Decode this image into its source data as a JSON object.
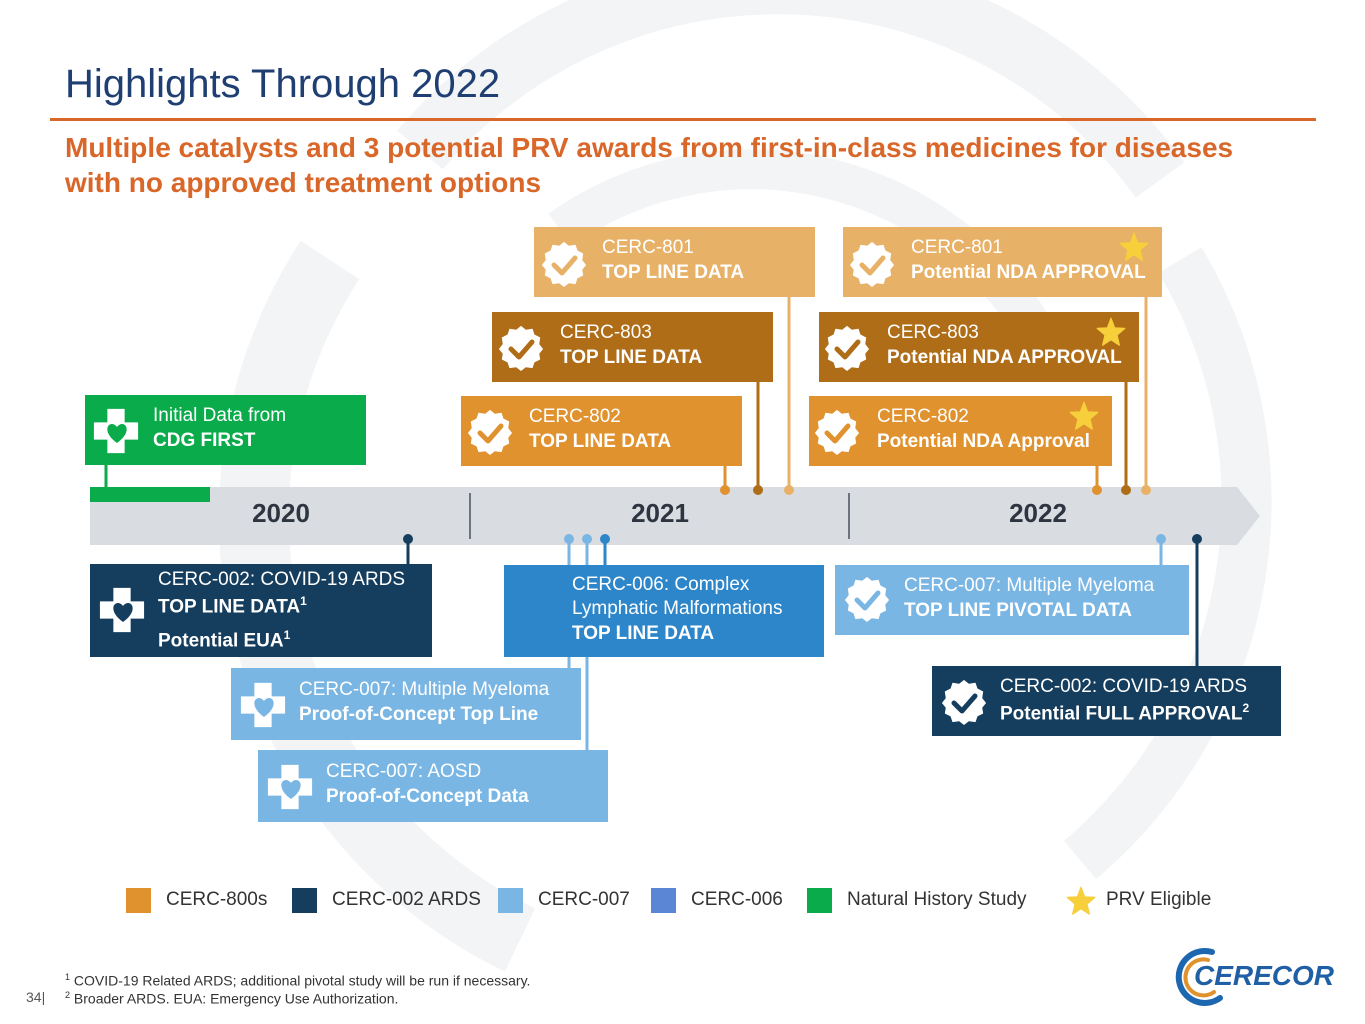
{
  "title": "Highlights Through 2022",
  "subtitle": "Multiple catalysts and 3 potential PRV awards from first-in-class medicines for diseases with no approved treatment options",
  "years": [
    "2020",
    "2021",
    "2022"
  ],
  "events": {
    "cerc801_top": {
      "line1": "CERC-801",
      "line2": "TOP LINE DATA"
    },
    "cerc801_nda": {
      "line1": "CERC-801",
      "line2": "Potential NDA APPROVAL"
    },
    "cerc803_top": {
      "line1": "CERC-803",
      "line2": "TOP LINE DATA"
    },
    "cerc803_nda": {
      "line1": "CERC-803",
      "line2": "Potential NDA APPROVAL"
    },
    "cerc802_top": {
      "line1": "CERC-802",
      "line2": "TOP LINE DATA"
    },
    "cerc802_nda": {
      "line1": "CERC-802",
      "line2": "Potential NDA Approval"
    },
    "cdg_first": {
      "line1": "Initial Data from",
      "line2": "CDG FIRST"
    },
    "cerc002_covid": {
      "line1": "CERC-002: COVID-19 ARDS",
      "line2": "TOP LINE DATA",
      "line2_sup": "1",
      "line3": "Potential EUA",
      "line3_sup": "1"
    },
    "cerc006": {
      "line1": "CERC-006: Complex",
      "line1b": "Lymphatic Malformations",
      "line2": "TOP LINE DATA"
    },
    "cerc007_mm_pivotal": {
      "line1": "CERC-007: Multiple Myeloma",
      "line2": "TOP LINE PIVOTAL DATA"
    },
    "cerc007_mm_poc": {
      "line1": "CERC-007: Multiple Myeloma",
      "line2": "Proof-of-Concept Top Line"
    },
    "cerc007_aosd": {
      "line1": "CERC-007: AOSD",
      "line2": "Proof-of-Concept Data"
    },
    "cerc002_full": {
      "line1": "CERC-002: COVID-19 ARDS",
      "line2": "Potential FULL APPROVAL",
      "line2_sup": "2"
    }
  },
  "legend": [
    {
      "label": "CERC-800s",
      "color": "#e0922f"
    },
    {
      "label": "CERC-002 ARDS",
      "color": "#143d5e"
    },
    {
      "label": "CERC-007",
      "color": "#7ab6e4"
    },
    {
      "label": "CERC-006",
      "color": "#5b86d6"
    },
    {
      "label": "Natural History Study",
      "color": "#0aab4a"
    },
    {
      "label": "PRV Eligible",
      "icon": "star-icon",
      "color": "#f7cf3b"
    }
  ],
  "footnotes": {
    "fn1_num": "1",
    "fn1": "COVID-19 Related ARDS; additional pivotal study will be run if necessary.",
    "fn2_num": "2",
    "fn2": "Broader ARDS. EUA: Emergency Use Authorization."
  },
  "page_number": "34|",
  "logo_text": "CERECOR",
  "colors": {
    "cerc801": "#e8b168",
    "cerc803": "#b06d18",
    "cerc802": "#e0922f",
    "cerc002": "#143d5e",
    "cerc006": "#2c86c9",
    "cerc007": "#7ab6e4",
    "green": "#0aab4a",
    "timeline": "#d9dde2",
    "title": "#1f3f73",
    "accent": "#d9672a"
  }
}
